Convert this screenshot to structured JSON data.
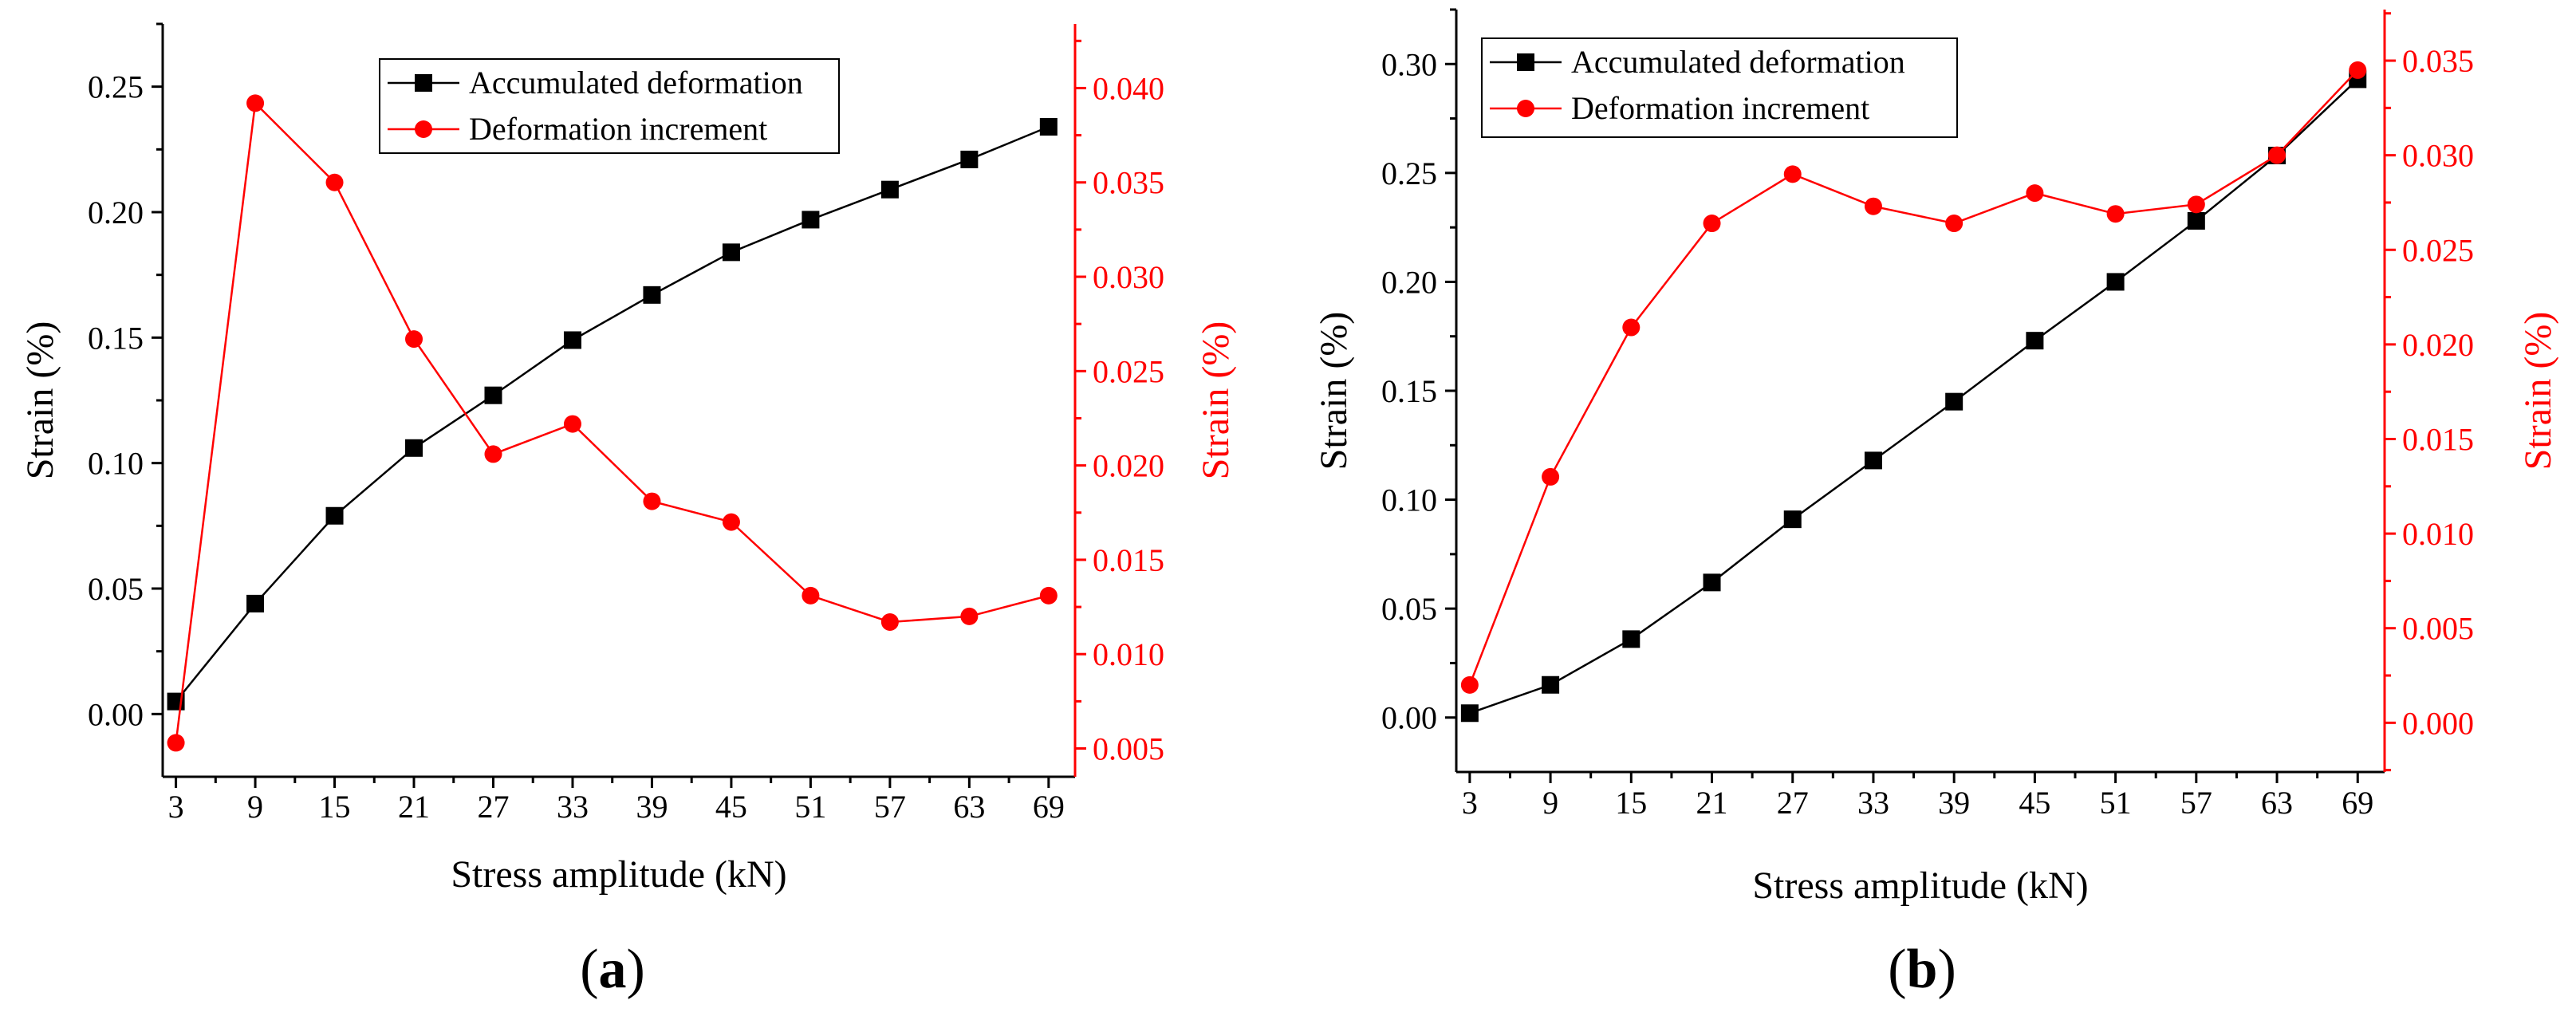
{
  "figure": {
    "panels": [
      {
        "label_open": "(",
        "label_letter": "a",
        "label_close": ")"
      },
      {
        "label_open": "(",
        "label_letter": "b",
        "label_close": ")"
      }
    ]
  },
  "chart_data": [
    {
      "type": "line",
      "panel": "a",
      "xlabel": "Stress amplitude (kN)",
      "ylabel": "Strain (%)",
      "y2label": "Strain (%)",
      "x": [
        3,
        9,
        15,
        21,
        27,
        33,
        39,
        45,
        51,
        57,
        63,
        69
      ],
      "xlim": [
        2,
        71
      ],
      "ylim": [
        -0.025,
        0.275
      ],
      "y2lim": [
        0.0035,
        0.0434
      ],
      "yticks": [
        0.0,
        0.05,
        0.1,
        0.15,
        0.2,
        0.25
      ],
      "y2ticks": [
        0.005,
        0.01,
        0.015,
        0.02,
        0.025,
        0.03,
        0.035,
        0.04
      ],
      "ytick_labels": [
        "0.00",
        "0.05",
        "0.10",
        "0.15",
        "0.20",
        "0.25"
      ],
      "y2tick_labels": [
        "0.005",
        "0.010",
        "0.015",
        "0.020",
        "0.025",
        "0.030",
        "0.035",
        "0.040"
      ],
      "legend_position": "top-center",
      "series": [
        {
          "name": "Accumulated deformation",
          "axis": "left",
          "color": "#000000",
          "marker": "square",
          "values": [
            0.005,
            0.044,
            0.079,
            0.106,
            0.127,
            0.149,
            0.167,
            0.184,
            0.197,
            0.209,
            0.221,
            0.234
          ]
        },
        {
          "name": "Deformation increment",
          "axis": "right",
          "color": "#ff0000",
          "marker": "circle",
          "values": [
            0.0053,
            0.0392,
            0.035,
            0.0267,
            0.0206,
            0.0222,
            0.0181,
            0.017,
            0.0131,
            0.0117,
            0.012,
            0.0131
          ]
        }
      ]
    },
    {
      "type": "line",
      "panel": "b",
      "xlabel": "Stress amplitude (kN)",
      "ylabel": "Strain (%)",
      "y2label": "Strain (%)",
      "x": [
        3,
        9,
        15,
        21,
        27,
        33,
        39,
        45,
        51,
        57,
        63,
        69
      ],
      "xlim": [
        2,
        71
      ],
      "ylim": [
        -0.025,
        0.325
      ],
      "y2lim": [
        -0.0026,
        0.0377
      ],
      "yticks": [
        0.0,
        0.05,
        0.1,
        0.15,
        0.2,
        0.25,
        0.3
      ],
      "y2ticks": [
        0.0,
        0.005,
        0.01,
        0.015,
        0.02,
        0.025,
        0.03,
        0.035
      ],
      "ytick_labels": [
        "0.00",
        "0.05",
        "0.10",
        "0.15",
        "0.20",
        "0.25",
        "0.30"
      ],
      "y2tick_labels": [
        "0.000",
        "0.005",
        "0.010",
        "0.015",
        "0.020",
        "0.025",
        "0.030",
        "0.035"
      ],
      "legend_position": "top-left",
      "series": [
        {
          "name": "Accumulated deformation",
          "axis": "left",
          "color": "#000000",
          "marker": "square",
          "values": [
            0.002,
            0.015,
            0.036,
            0.062,
            0.091,
            0.118,
            0.145,
            0.173,
            0.2,
            0.228,
            0.258,
            0.293
          ]
        },
        {
          "name": "Deformation increment",
          "axis": "right",
          "color": "#ff0000",
          "marker": "circle",
          "values": [
            0.002,
            0.013,
            0.0209,
            0.0264,
            0.029,
            0.0273,
            0.0264,
            0.028,
            0.0269,
            0.0274,
            0.03,
            0.0345
          ]
        }
      ]
    }
  ]
}
